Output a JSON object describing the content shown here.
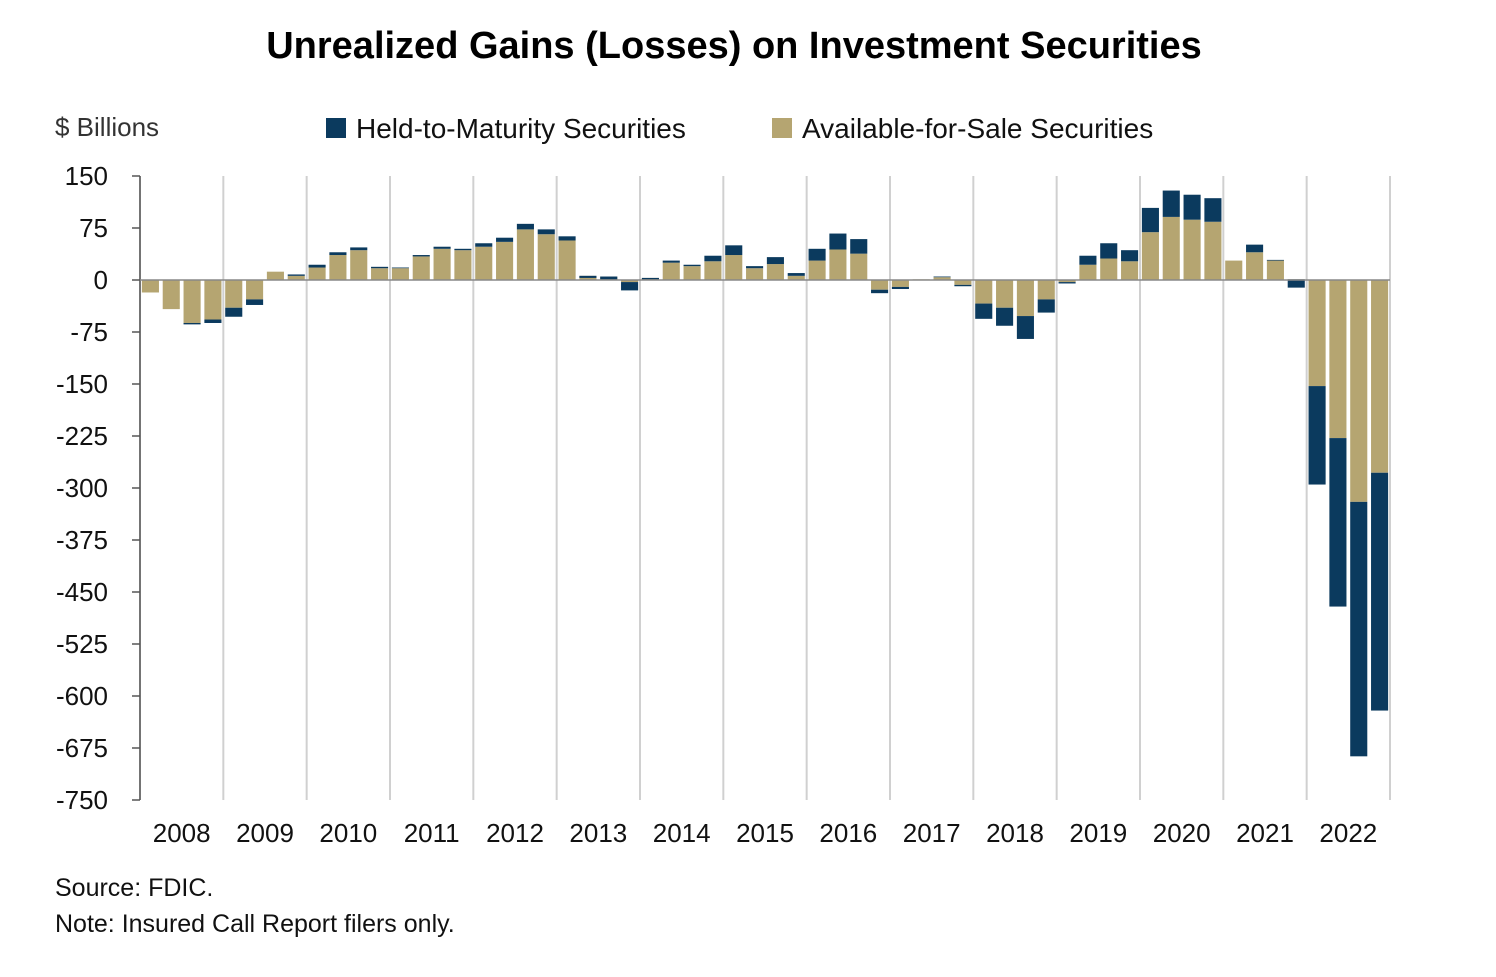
{
  "chart_data": {
    "type": "bar",
    "stacked": true,
    "title": "Unrealized Gains (Losses) on Investment Securities",
    "ylabel": "$ Billions",
    "xlabel": "",
    "ylim": [
      -750,
      150
    ],
    "yticks": [
      150,
      75,
      0,
      -75,
      -150,
      -225,
      -300,
      -375,
      -450,
      -525,
      -600,
      -675,
      -750
    ],
    "ytick_labels": [
      "150",
      "75",
      "0",
      "-75",
      "-150",
      "-225",
      "-300",
      "-375",
      "-450",
      "-525",
      "-600",
      "-675",
      "-750"
    ],
    "xtick_labels": [
      "2008",
      "2009",
      "2010",
      "2011",
      "2012",
      "2013",
      "2014",
      "2015",
      "2016",
      "2017",
      "2018",
      "2019",
      "2020",
      "2021",
      "2022"
    ],
    "grid": "vertical",
    "legend_position": "top",
    "categories": [
      "2008Q1",
      "2008Q2",
      "2008Q3",
      "2008Q4",
      "2009Q1",
      "2009Q2",
      "2009Q3",
      "2009Q4",
      "2010Q1",
      "2010Q2",
      "2010Q3",
      "2010Q4",
      "2011Q1",
      "2011Q2",
      "2011Q3",
      "2011Q4",
      "2012Q1",
      "2012Q2",
      "2012Q3",
      "2012Q4",
      "2013Q1",
      "2013Q2",
      "2013Q3",
      "2013Q4",
      "2014Q1",
      "2014Q2",
      "2014Q3",
      "2014Q4",
      "2015Q1",
      "2015Q2",
      "2015Q3",
      "2015Q4",
      "2016Q1",
      "2016Q2",
      "2016Q3",
      "2016Q4",
      "2017Q1",
      "2017Q2",
      "2017Q3",
      "2017Q4",
      "2018Q1",
      "2018Q2",
      "2018Q3",
      "2018Q4",
      "2019Q1",
      "2019Q2",
      "2019Q3",
      "2019Q4",
      "2020Q1",
      "2020Q2",
      "2020Q3",
      "2020Q4",
      "2021Q1",
      "2021Q2",
      "2021Q3",
      "2021Q4",
      "2022Q1",
      "2022Q2",
      "2022Q3",
      "2022Q4"
    ],
    "series": [
      {
        "name": "Available-for-Sale Securities",
        "color": "#b5a571",
        "values": [
          -18,
          -42,
          -62,
          -57,
          -40,
          -28,
          12,
          6,
          18,
          36,
          43,
          17,
          17,
          34,
          45,
          43,
          48,
          55,
          73,
          66,
          57,
          6,
          5,
          -3,
          3,
          25,
          20,
          27,
          36,
          17,
          23,
          6,
          28,
          44,
          38,
          -14,
          -10,
          1,
          4,
          -7,
          -34,
          -40,
          -52,
          -28,
          -3,
          22,
          31,
          27,
          69,
          91,
          87,
          84,
          28,
          40,
          28,
          1,
          -153,
          -228,
          -320,
          -278
        ]
      },
      {
        "name": "Held-to-Maturity Securities",
        "color": "#0b3a5e",
        "values": [
          0,
          0,
          -2,
          -5,
          -13,
          -8,
          0,
          2,
          4,
          4,
          4,
          2,
          1,
          2,
          3,
          2,
          5,
          6,
          8,
          7,
          6,
          -3,
          -4,
          -12,
          -2,
          3,
          2,
          8,
          14,
          3,
          10,
          4,
          17,
          23,
          21,
          -5,
          -3,
          0,
          1,
          -2,
          -22,
          -26,
          -33,
          -19,
          -2,
          13,
          22,
          16,
          35,
          38,
          36,
          34,
          0,
          11,
          1,
          -12,
          -142,
          -243,
          -367,
          -343
        ]
      }
    ],
    "legend": [
      {
        "label": "Held-to-Maturity Securities",
        "color": "#0b3a5e"
      },
      {
        "label": "Available-for-Sale Securities",
        "color": "#b5a571"
      }
    ]
  },
  "notes": {
    "source": "Source: FDIC.",
    "note": "Note: Insured Call Report filers only."
  }
}
